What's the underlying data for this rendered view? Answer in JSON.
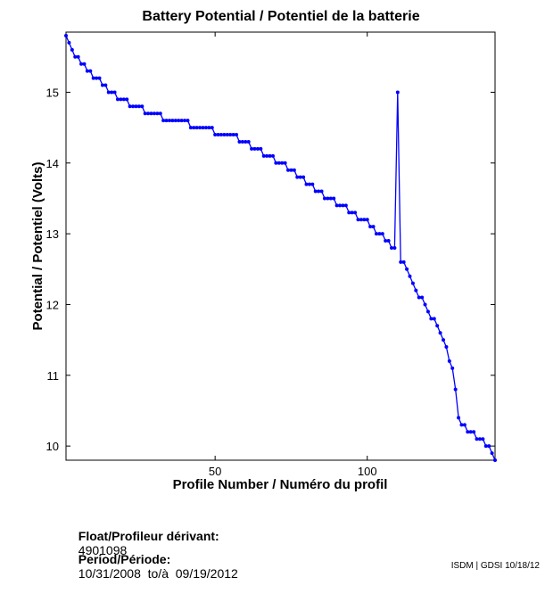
{
  "chart_data": {
    "type": "line",
    "title": "Battery Potential / Potentiel de la batterie",
    "xlabel": "Profile Number / Numéro du profil",
    "ylabel": "Potential / Potentiel (Volts)",
    "xlim": [
      1,
      142
    ],
    "ylim": [
      9.8,
      15.85
    ],
    "xticks": [
      50,
      100
    ],
    "yticks": [
      10,
      11,
      12,
      13,
      14,
      15
    ],
    "grid": false,
    "color": "#0000ff",
    "x": [
      1,
      2,
      3,
      4,
      5,
      6,
      7,
      8,
      9,
      10,
      11,
      12,
      13,
      14,
      15,
      16,
      17,
      18,
      19,
      20,
      21,
      22,
      23,
      24,
      25,
      26,
      27,
      28,
      29,
      30,
      31,
      32,
      33,
      34,
      35,
      36,
      37,
      38,
      39,
      40,
      41,
      42,
      43,
      44,
      45,
      46,
      47,
      48,
      49,
      50,
      51,
      52,
      53,
      54,
      55,
      56,
      57,
      58,
      59,
      60,
      61,
      62,
      63,
      64,
      65,
      66,
      67,
      68,
      69,
      70,
      71,
      72,
      73,
      74,
      75,
      76,
      77,
      78,
      79,
      80,
      81,
      82,
      83,
      84,
      85,
      86,
      87,
      88,
      89,
      90,
      91,
      92,
      93,
      94,
      95,
      96,
      97,
      98,
      99,
      100,
      101,
      102,
      103,
      104,
      105,
      106,
      107,
      108,
      109,
      110,
      111,
      112,
      113,
      114,
      115,
      116,
      117,
      118,
      119,
      120,
      121,
      122,
      123,
      124,
      125,
      126,
      127,
      128,
      129,
      130,
      131,
      132,
      133,
      134,
      135,
      136,
      137,
      138,
      139,
      140,
      141,
      142
    ],
    "y": [
      15.8,
      15.7,
      15.6,
      15.5,
      15.5,
      15.4,
      15.4,
      15.3,
      15.3,
      15.2,
      15.2,
      15.2,
      15.1,
      15.1,
      15.0,
      15.0,
      15.0,
      14.9,
      14.9,
      14.9,
      14.9,
      14.8,
      14.8,
      14.8,
      14.8,
      14.8,
      14.7,
      14.7,
      14.7,
      14.7,
      14.7,
      14.7,
      14.6,
      14.6,
      14.6,
      14.6,
      14.6,
      14.6,
      14.6,
      14.6,
      14.6,
      14.5,
      14.5,
      14.5,
      14.5,
      14.5,
      14.5,
      14.5,
      14.5,
      14.4,
      14.4,
      14.4,
      14.4,
      14.4,
      14.4,
      14.4,
      14.4,
      14.3,
      14.3,
      14.3,
      14.3,
      14.2,
      14.2,
      14.2,
      14.2,
      14.1,
      14.1,
      14.1,
      14.1,
      14.0,
      14.0,
      14.0,
      14.0,
      13.9,
      13.9,
      13.9,
      13.8,
      13.8,
      13.8,
      13.7,
      13.7,
      13.7,
      13.6,
      13.6,
      13.6,
      13.5,
      13.5,
      13.5,
      13.5,
      13.4,
      13.4,
      13.4,
      13.4,
      13.3,
      13.3,
      13.3,
      13.2,
      13.2,
      13.2,
      13.2,
      13.1,
      13.1,
      13.0,
      13.0,
      13.0,
      12.9,
      12.9,
      12.8,
      12.8,
      15.0,
      12.6,
      12.6,
      12.5,
      12.4,
      12.3,
      12.2,
      12.1,
      12.1,
      12.0,
      11.9,
      11.8,
      11.8,
      11.7,
      11.6,
      11.5,
      11.4,
      11.2,
      11.1,
      10.8,
      10.4,
      10.3,
      10.3,
      10.2,
      10.2,
      10.2,
      10.1,
      10.1,
      10.1,
      10.0,
      10.0,
      9.9,
      9.8
    ]
  },
  "info": {
    "float_label": "Float/Profileur dérivant:",
    "float_value": "4901098",
    "period_label": "Period/Période:",
    "period_value": "10/31/2008  to/à  09/19/2012"
  },
  "credit": "ISDM | GDSI 10/18/12"
}
